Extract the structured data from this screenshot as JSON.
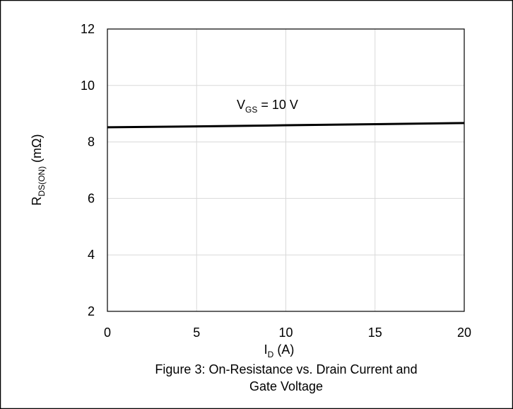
{
  "chart_data": {
    "type": "line",
    "x": [
      0,
      5,
      10,
      15,
      20
    ],
    "series": [
      {
        "name": "VGS = 10 V",
        "color": "#000000",
        "values": [
          8.52,
          8.55,
          8.59,
          8.63,
          8.67
        ]
      }
    ],
    "xlim": [
      0,
      20
    ],
    "xticks": [
      0,
      5,
      10,
      15,
      20
    ],
    "ylim": [
      2,
      12
    ],
    "yticks": [
      2,
      4,
      6,
      8,
      10,
      12
    ],
    "grid": true,
    "x_label": {
      "main": "I",
      "sub": "D",
      "rest": " (A)"
    },
    "y_label": {
      "main": "R",
      "sub": "DS(ON)",
      "rest": " (mΩ)"
    },
    "annotation": {
      "main": "V",
      "sub": "GS",
      "rest": " = 10 V"
    },
    "caption": [
      "Figure 3: On-Resistance vs. Drain Current and",
      "Gate Voltage"
    ]
  }
}
